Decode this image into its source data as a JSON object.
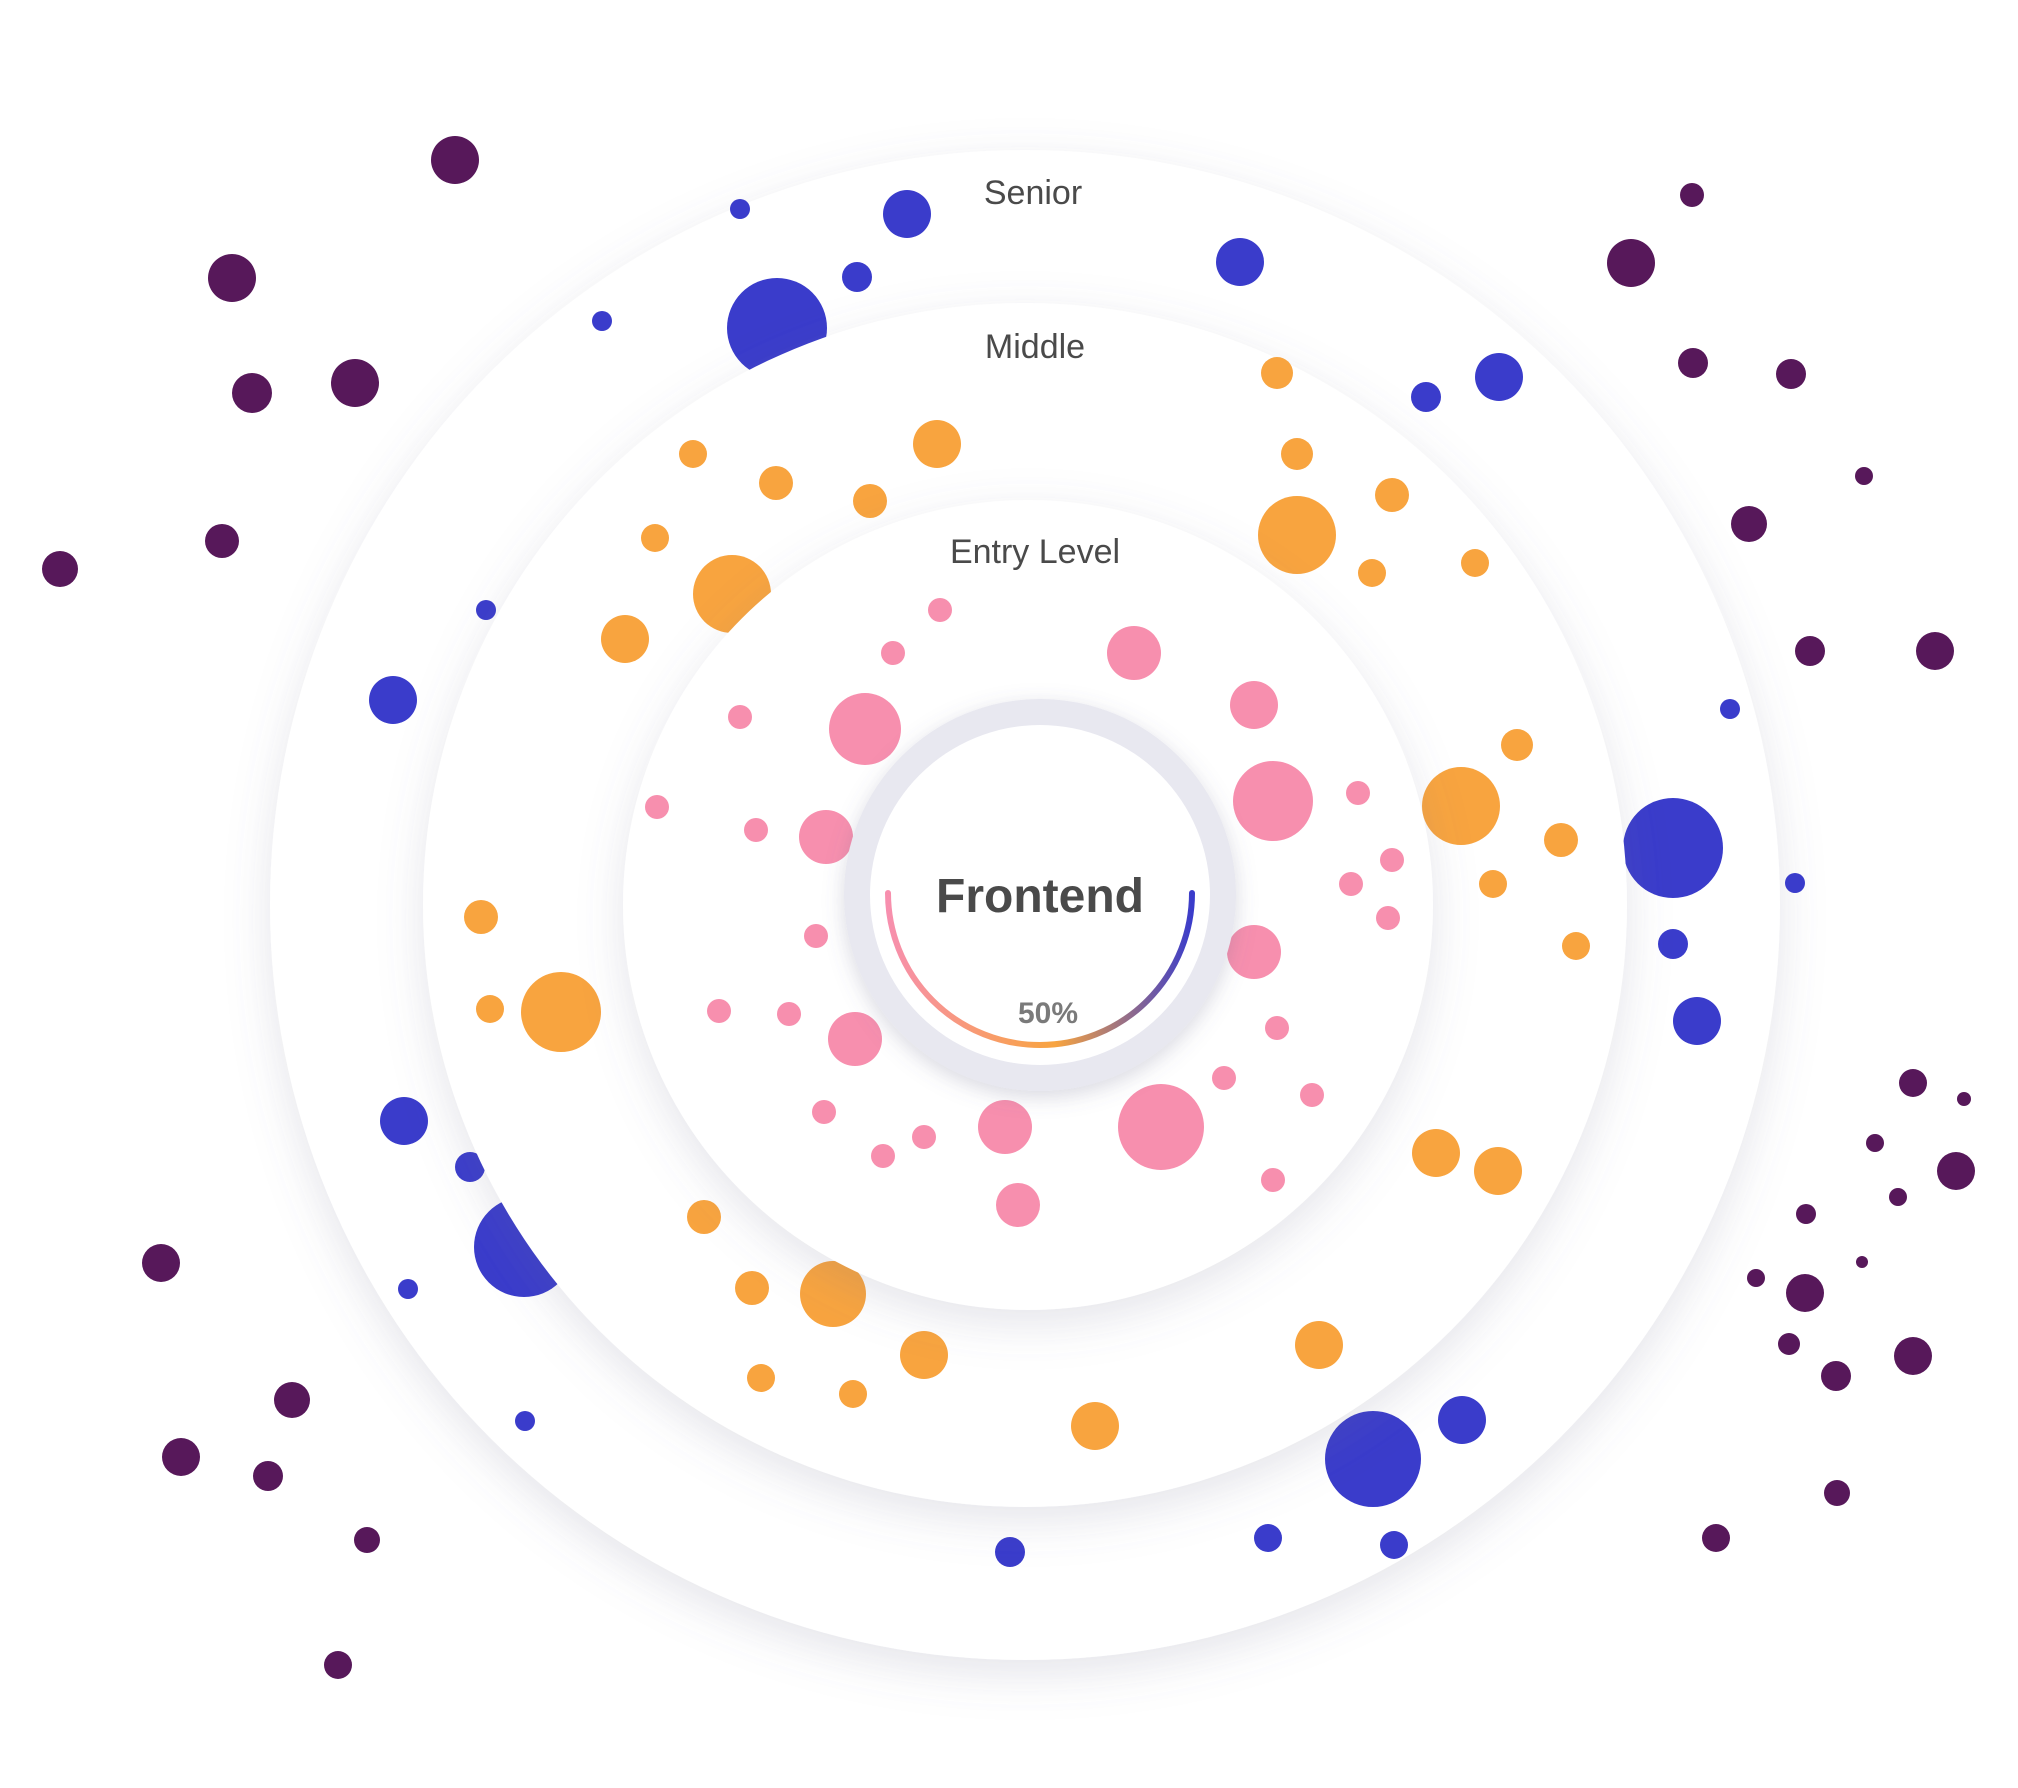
{
  "rings": {
    "senior_label": "Senior",
    "middle_label": "Middle",
    "entry_label": "Entry Level"
  },
  "center": {
    "title": "Frontend",
    "progress_label": "50%",
    "progress": 0.5
  },
  "colors": {
    "outside": "#57185a",
    "senior": "#3a3ccb",
    "middle": "#f8a43f",
    "entry": "#f78fae",
    "ring_fill": "#ffffff",
    "gauge_track": "#e6e6ef",
    "gauge_start": "#f78fae",
    "gauge_mid": "#f8a43f",
    "gauge_end": "#3a3ccb"
  }
}
